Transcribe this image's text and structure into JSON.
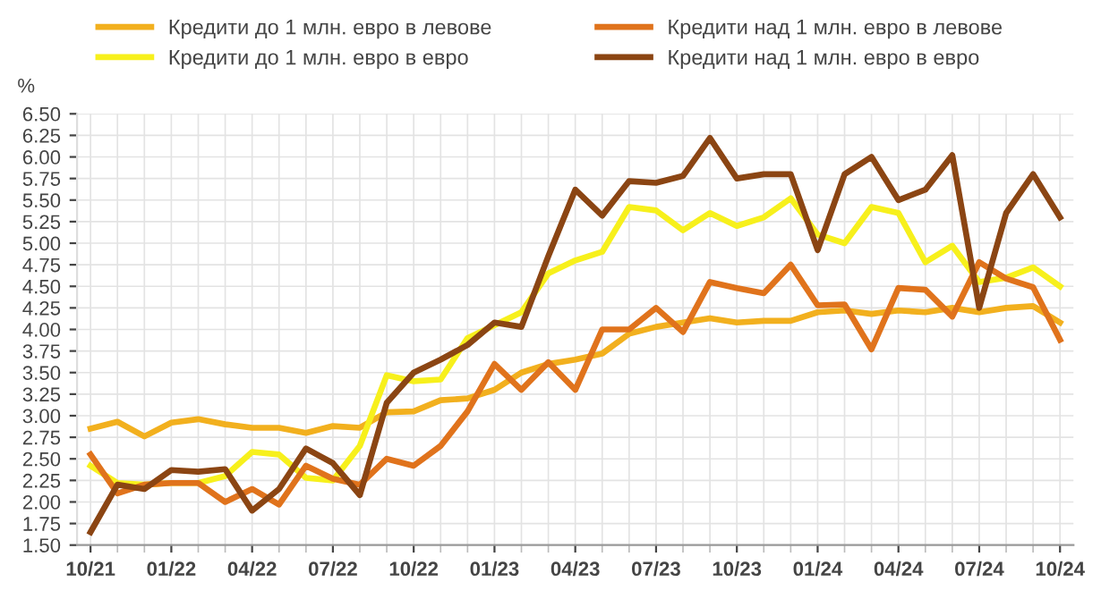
{
  "chart_data": {
    "type": "line",
    "ylabel": "%",
    "categories": [
      "10/21",
      null,
      null,
      "01/22",
      null,
      null,
      "04/22",
      null,
      null,
      "07/22",
      null,
      null,
      "10/22",
      null,
      null,
      "01/23",
      null,
      null,
      "04/23",
      null,
      null,
      "07/23",
      null,
      null,
      "10/23",
      null,
      null,
      "01/24",
      null,
      null,
      "04/24",
      null,
      null,
      "07/24",
      null,
      null,
      "10/24"
    ],
    "series": [
      {
        "name": "Кредити до 1 млн. евро в левове",
        "color": "#f2b01e",
        "values": [
          2.85,
          2.93,
          2.76,
          2.92,
          2.96,
          2.9,
          2.86,
          2.86,
          2.8,
          2.88,
          2.86,
          3.04,
          3.05,
          3.18,
          3.2,
          3.3,
          3.5,
          3.6,
          3.65,
          3.72,
          3.95,
          4.03,
          4.08,
          4.13,
          4.08,
          4.1,
          4.1,
          4.2,
          4.22,
          4.18,
          4.22,
          4.2,
          4.25,
          4.2,
          4.25,
          4.27,
          4.08
        ]
      },
      {
        "name": "Кредити до 1 млн. евро в евро",
        "color": "#f7f01c",
        "values": [
          2.42,
          2.22,
          2.2,
          2.22,
          2.22,
          2.3,
          2.58,
          2.55,
          2.28,
          2.25,
          2.65,
          3.47,
          3.4,
          3.42,
          3.9,
          4.05,
          4.2,
          4.65,
          4.8,
          4.9,
          5.42,
          5.38,
          5.15,
          5.35,
          5.2,
          5.3,
          5.52,
          5.1,
          5.0,
          5.42,
          5.35,
          4.78,
          4.97,
          4.55,
          4.6,
          4.72,
          4.5
        ]
      },
      {
        "name": "Кредити над 1 млн. евро в левове",
        "color": "#e0731c",
        "values": [
          2.55,
          2.1,
          2.2,
          2.22,
          2.22,
          2.0,
          2.15,
          1.97,
          2.42,
          2.27,
          2.2,
          2.5,
          2.42,
          2.65,
          3.05,
          3.6,
          3.3,
          3.62,
          3.3,
          4.0,
          4.0,
          4.25,
          3.97,
          4.55,
          4.48,
          4.42,
          4.75,
          4.28,
          4.29,
          3.77,
          4.48,
          4.46,
          4.15,
          4.78,
          4.59,
          4.49,
          3.88
        ]
      },
      {
        "name": "Кредити над 1 млн. евро в евро",
        "color": "#8b4513",
        "values": [
          1.65,
          2.2,
          2.15,
          2.37,
          2.35,
          2.38,
          1.9,
          2.15,
          2.62,
          2.45,
          2.08,
          3.15,
          3.5,
          3.65,
          3.82,
          4.08,
          4.03,
          4.85,
          5.62,
          5.32,
          5.72,
          5.7,
          5.78,
          6.22,
          5.75,
          5.8,
          5.8,
          4.92,
          5.8,
          6.0,
          5.5,
          5.62,
          6.02,
          4.25,
          5.35,
          5.8,
          5.3
        ]
      }
    ],
    "ylim": [
      1.5,
      6.5
    ],
    "yticks": [
      {
        "value": 1.5,
        "label": "1.50"
      },
      {
        "value": 1.75,
        "label": "1.75"
      },
      {
        "value": 2.0,
        "label": "2.00"
      },
      {
        "value": 2.25,
        "label": "2.25"
      },
      {
        "value": 2.5,
        "label": "2.50"
      },
      {
        "value": 2.75,
        "label": "2.75"
      },
      {
        "value": 3.0,
        "label": "3.00"
      },
      {
        "value": 3.25,
        "label": "3.25"
      },
      {
        "value": 3.5,
        "label": "3.50"
      },
      {
        "value": 3.75,
        "label": "3.75"
      },
      {
        "value": 4.0,
        "label": "4.00"
      },
      {
        "value": 4.25,
        "label": "4.25"
      },
      {
        "value": 4.5,
        "label": "4.50"
      },
      {
        "value": 4.75,
        "label": "4.75"
      },
      {
        "value": 5.0,
        "label": "5.00"
      },
      {
        "value": 5.25,
        "label": "5.25"
      },
      {
        "value": 5.5,
        "label": "5.50"
      },
      {
        "value": 5.75,
        "label": "5.75"
      },
      {
        "value": 6.0,
        "label": "6.00"
      },
      {
        "value": 6.25,
        "label": "6.25"
      },
      {
        "value": 6.5,
        "label": "6.50"
      }
    ],
    "grid": true,
    "legend": "top",
    "marker": "none",
    "line_style": "solid"
  }
}
